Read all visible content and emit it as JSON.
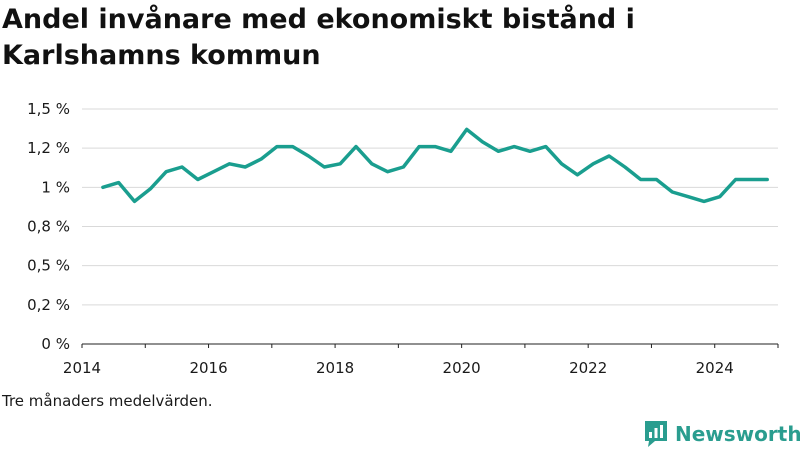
{
  "chart_data": {
    "type": "line",
    "title": "Andel invånare med ekonomiskt bistånd i Karlshamns kommun",
    "xlabel": "",
    "ylabel": "",
    "xlim": [
      2014,
      2025
    ],
    "ylim": [
      0,
      1.5
    ],
    "x_ticks": [
      2014,
      2016,
      2018,
      2020,
      2022,
      2024
    ],
    "x_tick_labels": [
      "2014",
      "2016",
      "2018",
      "2020",
      "2022",
      "2024"
    ],
    "y_ticks": [
      0,
      0.25,
      0.5,
      0.75,
      1,
      1.25,
      1.5
    ],
    "y_tick_labels": [
      "0 %",
      "0,2 %",
      "0,5 %",
      "0,8 %",
      "1 %",
      "1,2 %",
      "1,5 %"
    ],
    "grid": true,
    "series": [
      {
        "color": "#1a9e8f",
        "x": [
          2014.33,
          2014.58,
          2014.83,
          2015.08,
          2015.33,
          2015.58,
          2015.83,
          2016.08,
          2016.33,
          2016.58,
          2016.83,
          2017.08,
          2017.33,
          2017.58,
          2017.83,
          2018.08,
          2018.33,
          2018.58,
          2018.83,
          2019.08,
          2019.33,
          2019.58,
          2019.83,
          2020.08,
          2020.33,
          2020.58,
          2020.83,
          2021.08,
          2021.33,
          2021.58,
          2021.83,
          2022.08,
          2022.33,
          2022.58,
          2022.83,
          2023.08,
          2023.33,
          2023.58,
          2023.83,
          2024.08,
          2024.33,
          2024.58,
          2024.83
        ],
        "values": [
          1.0,
          1.03,
          0.91,
          0.99,
          1.1,
          1.13,
          1.05,
          1.1,
          1.15,
          1.13,
          1.18,
          1.26,
          1.26,
          1.2,
          1.13,
          1.15,
          1.26,
          1.15,
          1.1,
          1.13,
          1.26,
          1.26,
          1.23,
          1.37,
          1.29,
          1.23,
          1.26,
          1.23,
          1.26,
          1.15,
          1.08,
          1.15,
          1.2,
          1.13,
          1.05,
          1.05,
          0.97,
          0.94,
          0.91,
          0.94,
          1.05,
          1.05,
          1.05
        ]
      }
    ]
  },
  "footnote": "Tre månaders medelvärden.",
  "brand": {
    "name": "Newsworthy",
    "color": "#2a9d8f"
  }
}
